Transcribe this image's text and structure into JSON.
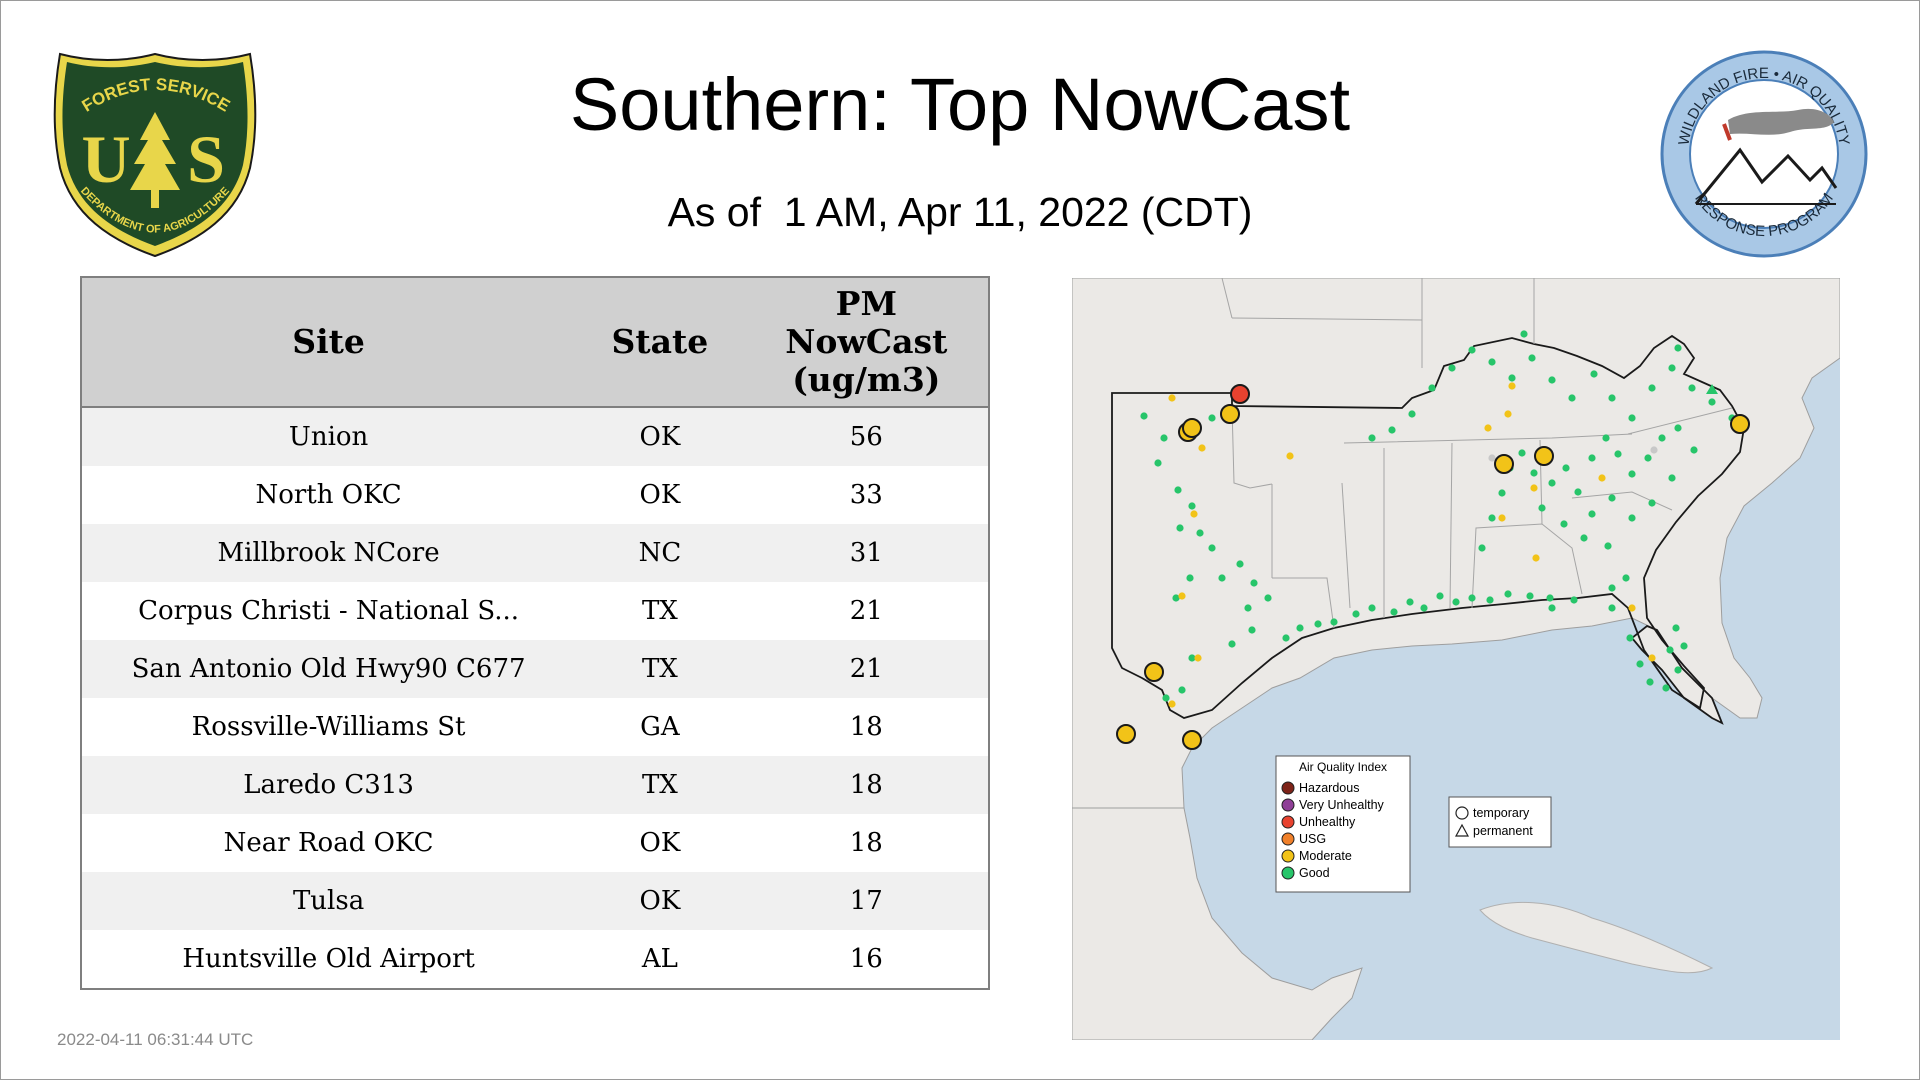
{
  "header": {
    "title": "Southern: Top NowCast",
    "subtitle": "As of  1 AM, Apr 11, 2022 (CDT)"
  },
  "logos": {
    "forest_service": {
      "top_text": "FOREST SERVICE",
      "letters": "U S",
      "bottom_text": "DEPARTMENT OF AGRICULTURE",
      "colors": {
        "shield": "#1f4a26",
        "gold": "#e8d64a"
      }
    },
    "wildland_fire": {
      "top_text": "WILDLAND FIRE • AIR QUALITY",
      "bottom_text": "RESPONSE PROGRAM",
      "colors": {
        "ring": "#a9c8e6",
        "border": "#4b7fb8"
      }
    }
  },
  "table": {
    "headers": [
      "Site",
      "State",
      "PM NowCast (ug/m3)"
    ],
    "header_lines": {
      "pm": [
        "PM",
        "NowCast",
        "(ug/m3)"
      ]
    },
    "rows": [
      {
        "site": "Union",
        "state": "OK",
        "value": "56"
      },
      {
        "site": "North OKC",
        "state": "OK",
        "value": "33"
      },
      {
        "site": "Millbrook NCore",
        "state": "NC",
        "value": "31"
      },
      {
        "site": "Corpus Christi - National S...",
        "state": "TX",
        "value": "21"
      },
      {
        "site": "San Antonio Old Hwy90 C677",
        "state": "TX",
        "value": "21"
      },
      {
        "site": "Rossville-Williams St",
        "state": "GA",
        "value": "18"
      },
      {
        "site": "Laredo C313",
        "state": "TX",
        "value": "18"
      },
      {
        "site": "Near Road OKC",
        "state": "OK",
        "value": "18"
      },
      {
        "site": "Tulsa",
        "state": "OK",
        "value": "17"
      },
      {
        "site": "Huntsville Old Airport",
        "state": "AL",
        "value": "16"
      }
    ]
  },
  "map": {
    "legend": {
      "title": "Air Quality Index",
      "items": [
        {
          "label": "Hazardous",
          "color": "#7e2318"
        },
        {
          "label": "Very Unhealthy",
          "color": "#8f3f97"
        },
        {
          "label": "Unhealthy",
          "color": "#e8422f"
        },
        {
          "label": "USG",
          "color": "#f0802a"
        },
        {
          "label": "Moderate",
          "color": "#f2c318"
        },
        {
          "label": "Good",
          "color": "#27c56a"
        }
      ]
    },
    "shape_legend": [
      {
        "label": "temporary",
        "shape": "circle"
      },
      {
        "label": "permanent",
        "shape": "triangle"
      }
    ],
    "colors": {
      "ocean": "#c6d8e7",
      "land": "#ebe9e6",
      "border": "#9e9e9e"
    }
  },
  "footer": {
    "timestamp": "2022-04-11 06:31:44 UTC"
  }
}
